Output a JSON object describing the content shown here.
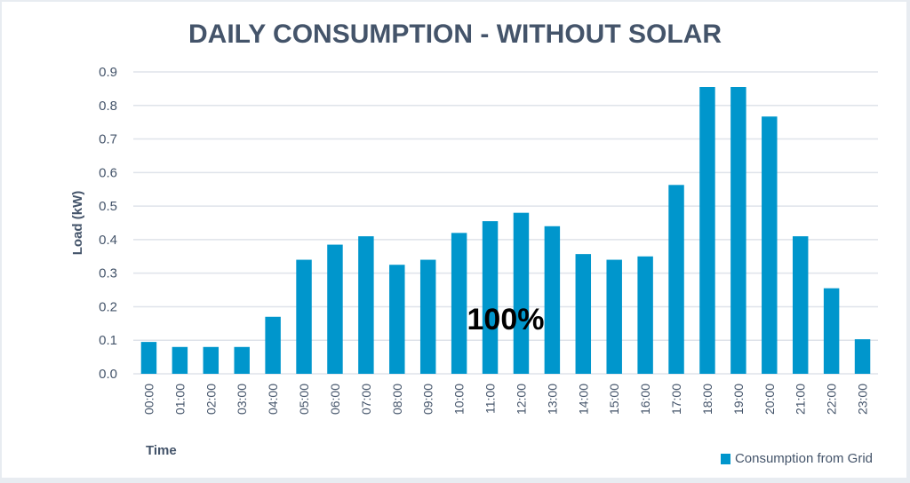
{
  "chart_data": {
    "type": "bar",
    "title": "DAILY CONSUMPTION  - WITHOUT SOLAR",
    "xlabel": "Time",
    "ylabel": "Load (kW)",
    "ylim": [
      0,
      0.9
    ],
    "yticks": [
      "0.0",
      "0.1",
      "0.2",
      "0.3",
      "0.4",
      "0.5",
      "0.6",
      "0.7",
      "0.8",
      "0.9"
    ],
    "grid": true,
    "legend_position": "bottom-right",
    "categories": [
      "00:00",
      "01:00",
      "02:00",
      "03:00",
      "04:00",
      "05:00",
      "06:00",
      "07:00",
      "08:00",
      "09:00",
      "10:00",
      "11:00",
      "12:00",
      "13:00",
      "14:00",
      "15:00",
      "16:00",
      "17:00",
      "18:00",
      "19:00",
      "20:00",
      "21:00",
      "22:00",
      "23:00"
    ],
    "series": [
      {
        "name": "Consumption from Grid",
        "color": "#0096cc",
        "values": [
          0.095,
          0.08,
          0.08,
          0.08,
          0.17,
          0.34,
          0.385,
          0.41,
          0.325,
          0.34,
          0.42,
          0.455,
          0.48,
          0.44,
          0.357,
          0.34,
          0.35,
          0.563,
          0.855,
          0.855,
          0.767,
          0.41,
          0.255,
          0.103
        ]
      }
    ],
    "annotations": [
      {
        "text": "100%",
        "x": "11:30",
        "y": 0.18
      }
    ]
  }
}
